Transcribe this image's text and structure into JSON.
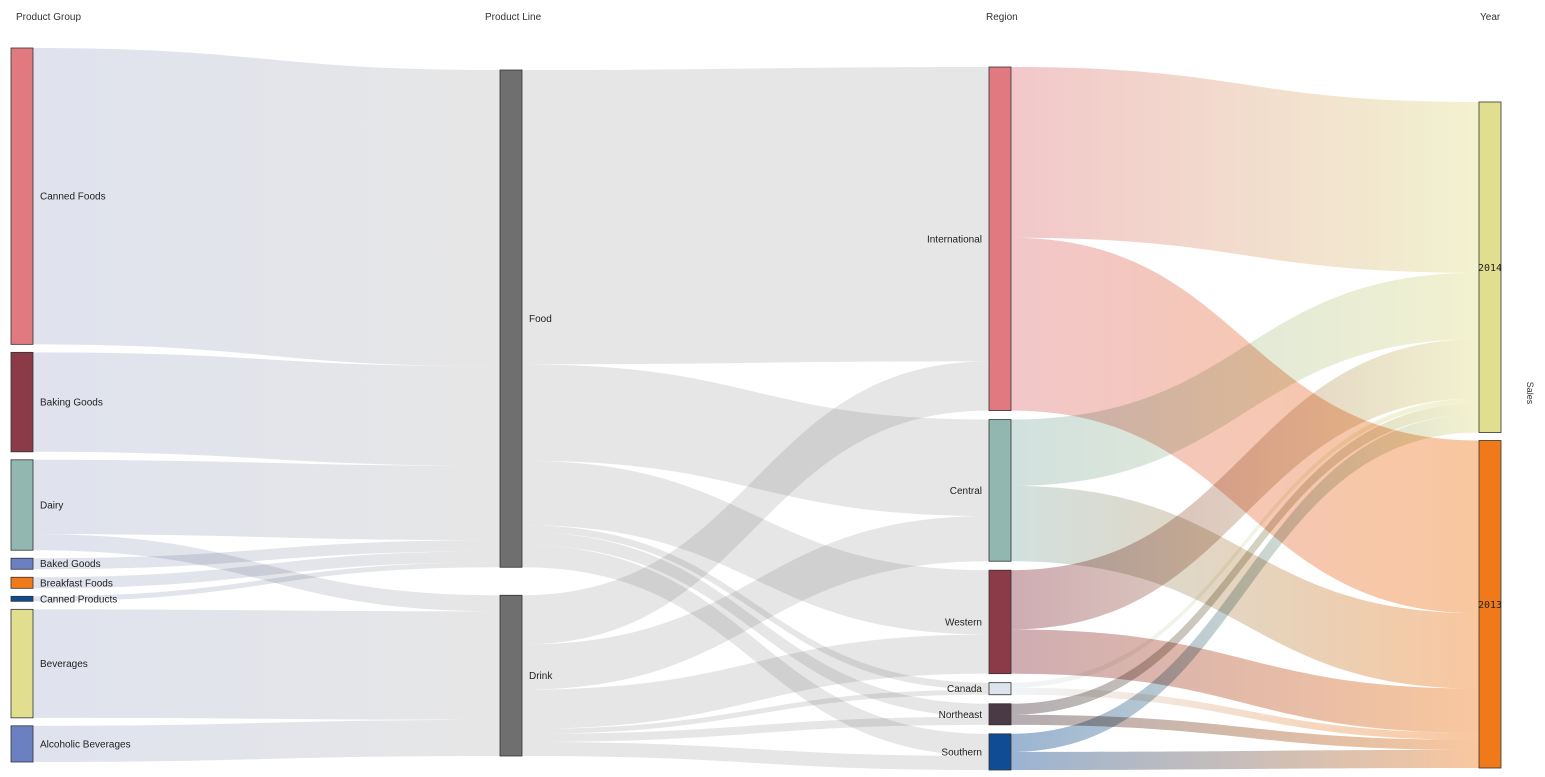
{
  "chart_data": {
    "type": "sankey",
    "measure_label": "Sales",
    "columns": [
      {
        "key": "group",
        "header": "Product Group"
      },
      {
        "key": "line",
        "header": "Product Line"
      },
      {
        "key": "region",
        "header": "Region"
      },
      {
        "key": "year",
        "header": "Year"
      }
    ],
    "nodes": [
      {
        "id": "canned_foods",
        "label": "Canned Foods",
        "column": "group",
        "color": "#e07a80"
      },
      {
        "id": "baking_goods",
        "label": "Baking Goods",
        "column": "group",
        "color": "#8b3a47"
      },
      {
        "id": "dairy",
        "label": "Dairy",
        "column": "group",
        "color": "#92b7b1"
      },
      {
        "id": "baked_goods",
        "label": "Baked Goods",
        "column": "group",
        "color": "#6a80c0"
      },
      {
        "id": "breakfast_foods",
        "label": "Breakfast Foods",
        "column": "group",
        "color": "#f07a1a"
      },
      {
        "id": "canned_products",
        "label": "Canned Products",
        "column": "group",
        "color": "#0f4c94"
      },
      {
        "id": "beverages",
        "label": "Beverages",
        "column": "group",
        "color": "#e1df8f"
      },
      {
        "id": "alcoholic_beverages",
        "label": "Alcoholic Beverages",
        "column": "group",
        "color": "#6a80c0"
      },
      {
        "id": "food",
        "label": "Food",
        "column": "line",
        "color": "#6f6f6f"
      },
      {
        "id": "drink",
        "label": "Drink",
        "column": "line",
        "color": "#6f6f6f"
      },
      {
        "id": "international",
        "label": "International",
        "column": "region",
        "color": "#e07a80"
      },
      {
        "id": "central",
        "label": "Central",
        "column": "region",
        "color": "#92b7b1"
      },
      {
        "id": "western",
        "label": "Western",
        "column": "region",
        "color": "#8b3a47"
      },
      {
        "id": "canada",
        "label": "Canada",
        "column": "region",
        "color": "#dde4ee"
      },
      {
        "id": "northeast",
        "label": "Northeast",
        "column": "region",
        "color": "#4a3a46"
      },
      {
        "id": "southern",
        "label": "Southern",
        "column": "region",
        "color": "#0f4c94"
      },
      {
        "id": "y2014",
        "label": "2014",
        "column": "year",
        "color": "#e1df8f"
      },
      {
        "id": "y2013",
        "label": "2013",
        "column": "year",
        "color": "#f07a1a"
      }
    ],
    "links": [
      {
        "source": "canned_foods",
        "target": "food",
        "value": 295,
        "color": "#b4bcd7"
      },
      {
        "source": "baking_goods",
        "target": "food",
        "value": 99,
        "color": "#b4bcd7"
      },
      {
        "source": "dairy",
        "target": "food",
        "value": 74,
        "color": "#b4bcd7"
      },
      {
        "source": "dairy",
        "target": "drink",
        "value": 16,
        "color": "#b4bcd7"
      },
      {
        "source": "baked_goods",
        "target": "food",
        "value": 11,
        "color": "#b4bcd7"
      },
      {
        "source": "breakfast_foods",
        "target": "food",
        "value": 11,
        "color": "#b4bcd7"
      },
      {
        "source": "canned_products",
        "target": "food",
        "value": 5,
        "color": "#b4bcd7"
      },
      {
        "source": "beverages",
        "target": "drink",
        "value": 108,
        "color": "#b4bcd7"
      },
      {
        "source": "alcoholic_beverages",
        "target": "drink",
        "value": 36,
        "color": "#b4bcd7"
      },
      {
        "source": "food",
        "target": "international",
        "value": 293,
        "color": "#c4c4c4"
      },
      {
        "source": "food",
        "target": "central",
        "value": 96,
        "color": "#c4c4c4"
      },
      {
        "source": "food",
        "target": "western",
        "value": 64,
        "color": "#c4c4c4"
      },
      {
        "source": "food",
        "target": "canada",
        "value": 7,
        "color": "#c4c4c4"
      },
      {
        "source": "food",
        "target": "northeast",
        "value": 13,
        "color": "#c4c4c4"
      },
      {
        "source": "food",
        "target": "southern",
        "value": 22,
        "color": "#c4c4c4"
      },
      {
        "source": "drink",
        "target": "international",
        "value": 49,
        "color": "#c4c4c4"
      },
      {
        "source": "drink",
        "target": "central",
        "value": 45,
        "color": "#c4c4c4"
      },
      {
        "source": "drink",
        "target": "western",
        "value": 39,
        "color": "#c4c4c4"
      },
      {
        "source": "drink",
        "target": "canada",
        "value": 5,
        "color": "#c4c4c4"
      },
      {
        "source": "drink",
        "target": "northeast",
        "value": 8,
        "color": "#c4c4c4"
      },
      {
        "source": "drink",
        "target": "southern",
        "value": 14,
        "color": "#c4c4c4"
      },
      {
        "source": "international",
        "target": "y2014",
        "value": 170,
        "color": "#e07a80"
      },
      {
        "source": "international",
        "target": "y2013",
        "value": 172,
        "color": "#e07a80"
      },
      {
        "source": "central",
        "target": "y2014",
        "value": 66,
        "color": "#92b7b1"
      },
      {
        "source": "central",
        "target": "y2013",
        "value": 75,
        "color": "#92b7b1"
      },
      {
        "source": "western",
        "target": "y2014",
        "value": 59,
        "color": "#8b3a47"
      },
      {
        "source": "western",
        "target": "y2013",
        "value": 44,
        "color": "#8b3a47"
      },
      {
        "source": "canada",
        "target": "y2014",
        "value": 5,
        "color": "#dde4ee"
      },
      {
        "source": "canada",
        "target": "y2013",
        "value": 7,
        "color": "#dde4ee"
      },
      {
        "source": "northeast",
        "target": "y2014",
        "value": 11,
        "color": "#4a3a46"
      },
      {
        "source": "northeast",
        "target": "y2013",
        "value": 10,
        "color": "#4a3a46"
      },
      {
        "source": "southern",
        "target": "y2014",
        "value": 18,
        "color": "#0f4c94"
      },
      {
        "source": "southern",
        "target": "y2013",
        "value": 18,
        "color": "#0f4c94"
      }
    ]
  }
}
